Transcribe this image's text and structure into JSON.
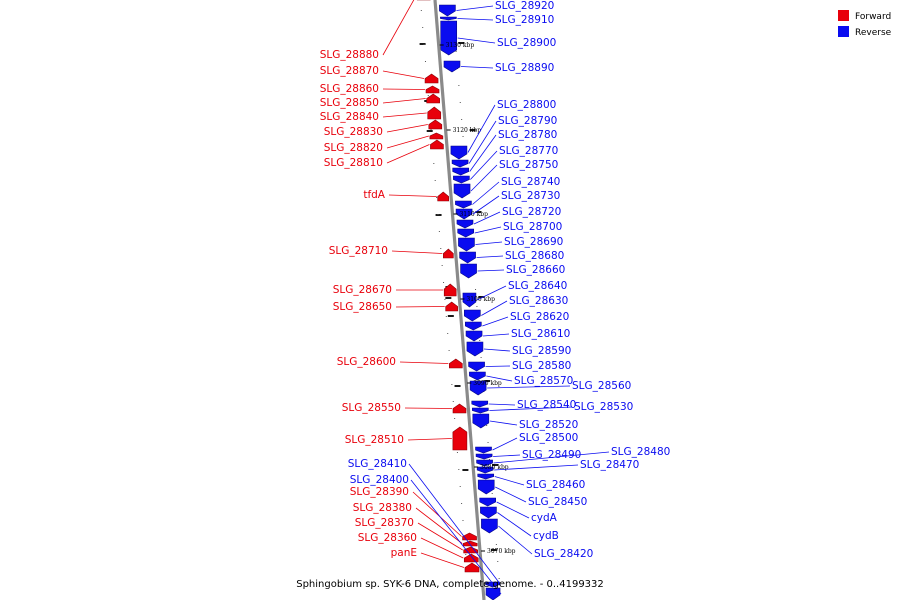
{
  "title": "Sphingobium sp. SYK-6 DNA, complete genome. - 0..4199332",
  "legend": [
    {
      "label": "Forward",
      "color": "#e8000b"
    },
    {
      "label": "Reverse",
      "color": "#0a0cf0"
    }
  ],
  "colors": {
    "forward": "#e8000b",
    "reverse": "#0a0cf0",
    "axis": "#8a8a8a"
  },
  "ticks": [
    "3130 kbp",
    "3120 kbp",
    "3110 kbp",
    "3100 kbp",
    "3090 kbp",
    "3080 kbp",
    "3070 kbp"
  ],
  "forward_genes": [
    "SLG_28880",
    "SLG_28870",
    "SLG_28860",
    "SLG_28850",
    "SLG_28840",
    "SLG_28830",
    "SLG_28820",
    "SLG_28810",
    "tfdA",
    "SLG_28710",
    "SLG_28670",
    "SLG_28650",
    "SLG_28600",
    "SLG_28550",
    "SLG_28510",
    "SLG_28390",
    "SLG_28380",
    "SLG_28370",
    "SLG_28360",
    "panE"
  ],
  "reverse_genes": [
    "SLG_28920",
    "SLG_28910",
    "SLG_28900",
    "SLG_28890",
    "SLG_28800",
    "SLG_28790",
    "SLG_28780",
    "SLG_28770",
    "SLG_28750",
    "SLG_28740",
    "SLG_28730",
    "SLG_28720",
    "SLG_28700",
    "SLG_28690",
    "SLG_28680",
    "SLG_28660",
    "SLG_28640",
    "SLG_28630",
    "SLG_28620",
    "SLG_28610",
    "SLG_28590",
    "SLG_28580",
    "SLG_28570",
    "SLG_28560",
    "SLG_28540",
    "SLG_28530",
    "SLG_28520",
    "SLG_28500",
    "SLG_28490",
    "SLG_28480",
    "SLG_28470",
    "SLG_28460",
    "SLG_28450",
    "cydA",
    "cydB",
    "SLG_28420",
    "SLG_28410",
    "SLG_28400"
  ]
}
